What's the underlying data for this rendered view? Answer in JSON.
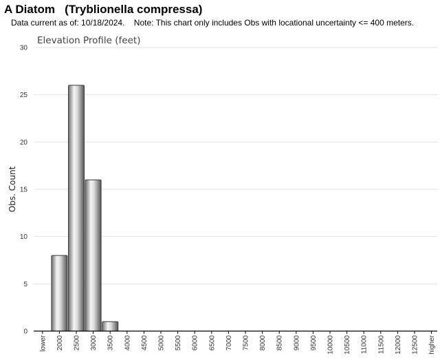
{
  "header": {
    "title": "A Diatom   (Tryblionella compressa)",
    "note": "Data current as of: 10/18/2024.    Note: This chart only includes Obs with locational uncertainty <= 400 meters."
  },
  "chart_data": {
    "type": "bar",
    "title": "Elevation Profile (feet)",
    "xlabel": "",
    "ylabel": "Obs. Count",
    "ylim": [
      0,
      30
    ],
    "yticks": [
      0,
      5,
      10,
      15,
      20,
      25,
      30
    ],
    "grid": true,
    "categories": [
      "lower",
      "2000",
      "2500",
      "3000",
      "3500",
      "4000",
      "4500",
      "5000",
      "5500",
      "6000",
      "6500",
      "7000",
      "7500",
      "8000",
      "8500",
      "9000",
      "9500",
      "10000",
      "10500",
      "11000",
      "11500",
      "12000",
      "12500",
      "higher"
    ],
    "values": [
      0,
      8,
      26,
      16,
      1,
      0,
      0,
      0,
      0,
      0,
      0,
      0,
      0,
      0,
      0,
      0,
      0,
      0,
      0,
      0,
      0,
      0,
      0,
      0
    ]
  }
}
